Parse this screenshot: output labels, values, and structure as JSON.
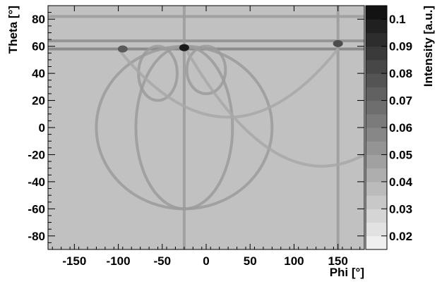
{
  "chart_data": {
    "type": "heatmap",
    "title": "",
    "xlabel": "Phi [°]",
    "ylabel": "Theta [°]",
    "colorbar_label": "Intensity [a.u.]",
    "xlim": [
      -180,
      180
    ],
    "ylim": [
      -90,
      90
    ],
    "x_ticks": [
      -150,
      -100,
      -50,
      0,
      50,
      100,
      150
    ],
    "y_ticks": [
      -80,
      -60,
      -40,
      -20,
      0,
      20,
      40,
      60,
      80
    ],
    "colorbar_range": [
      0.015,
      0.105
    ],
    "colorbar_ticks": [
      0.02,
      0.03,
      0.04,
      0.05,
      0.06,
      0.07,
      0.08,
      0.09,
      0.1
    ],
    "colormap": "grayscale",
    "background_intensity": 0.035,
    "bands": [
      {
        "kind": "horizontal",
        "theta": 58,
        "intensity": 0.06
      },
      {
        "kind": "horizontal",
        "theta": 64,
        "intensity": 0.055
      },
      {
        "kind": "horizontal",
        "theta": 82,
        "intensity": 0.05
      },
      {
        "kind": "vertical",
        "phi": -25,
        "intensity": 0.05
      },
      {
        "kind": "vertical",
        "phi": 150,
        "intensity": 0.05
      },
      {
        "kind": "ellipse",
        "phi": -25,
        "theta": 0,
        "half_width_phi": 100,
        "half_height_theta": 60,
        "intensity": 0.05
      },
      {
        "kind": "ellipse",
        "phi": -25,
        "theta": 0,
        "half_width_phi": 55,
        "half_height_theta": 60,
        "intensity": 0.05
      },
      {
        "kind": "lobe",
        "phi": -55,
        "theta_top": 60,
        "theta_bottom": 20,
        "intensity": 0.05
      },
      {
        "kind": "lobe",
        "phi": 0,
        "theta_top": 60,
        "theta_bottom": 25,
        "intensity": 0.05
      },
      {
        "kind": "arc",
        "from": [
          -100,
          58
        ],
        "to": [
          150,
          58
        ],
        "peak_theta": 5,
        "intensity": 0.045
      },
      {
        "kind": "arc",
        "from": [
          -25,
          60
        ],
        "to": [
          180,
          -20
        ],
        "peak_theta": -20,
        "intensity": 0.045
      }
    ],
    "hotspots": [
      {
        "phi": -25,
        "theta": 59,
        "intensity": 0.1
      },
      {
        "phi": -95,
        "theta": 58,
        "intensity": 0.075
      },
      {
        "phi": 150,
        "theta": 62,
        "intensity": 0.08
      }
    ]
  }
}
